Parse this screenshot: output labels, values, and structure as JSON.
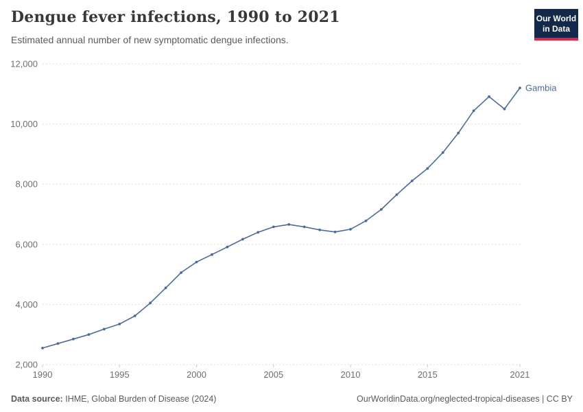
{
  "header": {
    "title": "Dengue fever infections, 1990 to 2021",
    "subtitle": "Estimated annual number of new symptomatic dengue infections.",
    "logo": {
      "line1": "Our World",
      "line2": "in Data"
    }
  },
  "chart_data": {
    "type": "line",
    "title": "Dengue fever infections, 1990 to 2021",
    "entity": "Gambia",
    "x": [
      1990,
      1991,
      1992,
      1993,
      1994,
      1995,
      1996,
      1997,
      1998,
      1999,
      2000,
      2001,
      2002,
      2003,
      2004,
      2005,
      2006,
      2007,
      2008,
      2009,
      2010,
      2011,
      2012,
      2013,
      2014,
      2015,
      2016,
      2017,
      2018,
      2019,
      2020,
      2021
    ],
    "values": [
      2550,
      2700,
      2850,
      3000,
      3180,
      3350,
      3620,
      4050,
      4550,
      5060,
      5410,
      5660,
      5910,
      6170,
      6400,
      6580,
      6660,
      6580,
      6480,
      6410,
      6500,
      6780,
      7160,
      7650,
      8110,
      8520,
      9050,
      9700,
      10440,
      10910,
      10500,
      11200
    ],
    "xlabel": "",
    "ylabel": "",
    "xlim": [
      1990,
      2021
    ],
    "ylim": [
      2000,
      12000
    ],
    "yticks": [
      2000,
      4000,
      6000,
      8000,
      10000,
      12000
    ],
    "ytick_labels": [
      "2,000",
      "4,000",
      "6,000",
      "8,000",
      "10,000",
      "12,000"
    ],
    "xticks": [
      1990,
      1995,
      2000,
      2005,
      2010,
      2015,
      2021
    ],
    "xtick_labels": [
      "1990",
      "1995",
      "2000",
      "2005",
      "2010",
      "2015",
      "2021"
    ],
    "grid": "horizontal-dashed",
    "legend_position": "end-of-line-label",
    "colors": {
      "line": "#4c6a9c",
      "grid": "#dddddd",
      "tick_text": "#6e6e6e",
      "tick_mark": "#c8c8c8",
      "entity_label": "#4c6a9c"
    }
  },
  "footer": {
    "datasource_label": "Data source:",
    "datasource_value": "IHME, Global Burden of Disease (2024)",
    "attribution": "OurWorldinData.org/neglected-tropical-diseases | CC BY"
  }
}
